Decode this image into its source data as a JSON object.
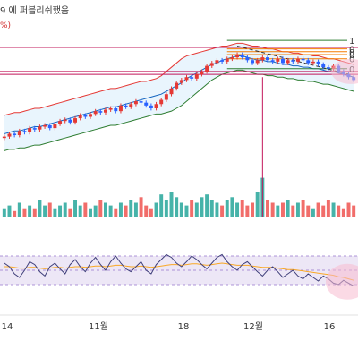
{
  "header": {
    "published_text": "9 에 퍼블리쉬했음",
    "percent_fragment": "%)"
  },
  "colors": {
    "up": "#26a69a",
    "down": "#ef5350",
    "candle_up": "#2962ff",
    "candle_down": "#e53935",
    "bb_upper": "#e53935",
    "bb_lower": "#2e7d32",
    "bb_mid": "#1565c0",
    "bb_fill": "#e3f2fd",
    "fib_1": "#2e7d32",
    "fib_mid": "#f57c00",
    "fib_0": "#2e7d32",
    "hline": "#c2185b",
    "rsi": "#3f3f7a",
    "rsi_ma": "#f9a825",
    "rsi_band": "#ede7f6",
    "highlight": "#f8bbd0"
  },
  "chart_data": {
    "type": "candlestick",
    "x_ticks": [
      "14",
      "11월",
      "18",
      "12월",
      "16"
    ],
    "fib_labels": [
      "1",
      "0",
      "0",
      "0",
      "0",
      "0"
    ],
    "price": {
      "closes": [
        30,
        32,
        31,
        34,
        33,
        36,
        35,
        37,
        38,
        36,
        39,
        41,
        42,
        40,
        43,
        45,
        44,
        46,
        48,
        47,
        49,
        50,
        48,
        52,
        51,
        53,
        55,
        54,
        52,
        50,
        53,
        56,
        60,
        64,
        68,
        70,
        72,
        71,
        74,
        76,
        80,
        82,
        84,
        83,
        85,
        86,
        88,
        86,
        84,
        82,
        84,
        86,
        84,
        83,
        85,
        82,
        84,
        83,
        85,
        84,
        82,
        83,
        81,
        79,
        78,
        80,
        76,
        74,
        72,
        70
      ],
      "ylim": [
        0,
        100
      ]
    },
    "volume": {
      "values": [
        3,
        4,
        2,
        5,
        3,
        4,
        3,
        6,
        4,
        5,
        3,
        4,
        5,
        3,
        6,
        4,
        5,
        3,
        4,
        6,
        5,
        4,
        3,
        5,
        4,
        6,
        5,
        7,
        4,
        3,
        5,
        8,
        6,
        9,
        7,
        5,
        4,
        6,
        5,
        7,
        8,
        6,
        5,
        4,
        6,
        7,
        5,
        6,
        4,
        5,
        9,
        14,
        6,
        5,
        4,
        5,
        6,
        4,
        5,
        6,
        4,
        3,
        5,
        4,
        6,
        5,
        4,
        3,
        5,
        4
      ],
      "ylim": [
        0,
        20
      ]
    },
    "rsi": {
      "values": [
        60,
        55,
        45,
        40,
        50,
        62,
        58,
        48,
        42,
        55,
        60,
        52,
        45,
        58,
        65,
        55,
        48,
        60,
        68,
        58,
        50,
        62,
        70,
        60,
        52,
        48,
        55,
        62,
        50,
        45,
        58,
        65,
        72,
        68,
        60,
        55,
        62,
        70,
        65,
        58,
        52,
        60,
        68,
        72,
        62,
        55,
        50,
        58,
        62,
        55,
        48,
        42,
        50,
        55,
        48,
        40,
        45,
        50,
        42,
        38,
        45,
        40,
        35,
        42,
        38,
        32,
        30,
        36,
        32,
        28
      ],
      "ylim": [
        0,
        100
      ]
    },
    "bb_upper": [
      45,
      46,
      47,
      47,
      48,
      49,
      50,
      50,
      51,
      52,
      53,
      54,
      55,
      56,
      57,
      58,
      59,
      60,
      61,
      62,
      63,
      64,
      64,
      65,
      66,
      67,
      68,
      69,
      69,
      70,
      71,
      73,
      76,
      79,
      82,
      85,
      87,
      88,
      89,
      90,
      91,
      92,
      93,
      94,
      94,
      95,
      96,
      96,
      95,
      94,
      94,
      93,
      92,
      92,
      91,
      90,
      90,
      89,
      89,
      88,
      88,
      87,
      87,
      86,
      85,
      85,
      84,
      83,
      82,
      81
    ],
    "bb_lower": [
      20,
      21,
      21,
      22,
      22,
      23,
      24,
      24,
      25,
      26,
      27,
      28,
      29,
      30,
      31,
      32,
      33,
      34,
      35,
      36,
      37,
      38,
      38,
      39,
      40,
      41,
      42,
      43,
      44,
      45,
      46,
      46,
      47,
      48,
      50,
      52,
      55,
      58,
      61,
      64,
      67,
      70,
      72,
      74,
      75,
      76,
      77,
      77,
      76,
      75,
      74,
      74,
      73,
      73,
      72,
      72,
      71,
      71,
      70,
      70,
      69,
      69,
      68,
      67,
      67,
      66,
      65,
      64,
      63,
      62
    ],
    "bb_mid": [
      32,
      33,
      34,
      34,
      35,
      36,
      37,
      37,
      38,
      39,
      40,
      41,
      42,
      43,
      44,
      45,
      46,
      47,
      48,
      49,
      50,
      51,
      51,
      52,
      53,
      54,
      55,
      56,
      57,
      58,
      59,
      60,
      62,
      64,
      66,
      68,
      71,
      73,
      75,
      77,
      79,
      81,
      82,
      84,
      85,
      86,
      87,
      87,
      86,
      85,
      84,
      84,
      83,
      83,
      82,
      81,
      81,
      80,
      80,
      79,
      79,
      78,
      78,
      77,
      76,
      76,
      75,
      74,
      73,
      72
    ],
    "fib_levels": [
      98,
      92,
      90,
      88,
      85,
      78
    ],
    "hlines": [
      93,
      76,
      74
    ],
    "rsi_ma": [
      55,
      55,
      54,
      53,
      53,
      54,
      54,
      53,
      52,
      53,
      54,
      54,
      53,
      54,
      55,
      55,
      54,
      55,
      56,
      56,
      55,
      56,
      57,
      57,
      56,
      55,
      55,
      56,
      55,
      54,
      55,
      56,
      57,
      58,
      58,
      57,
      58,
      59,
      59,
      58,
      57,
      58,
      59,
      60,
      59,
      58,
      57,
      57,
      57,
      56,
      55,
      54,
      54,
      54,
      53,
      52,
      51,
      51,
      50,
      49,
      48,
      47,
      46,
      45,
      44,
      43,
      41,
      40,
      38,
      36
    ],
    "marker_index": 51
  }
}
